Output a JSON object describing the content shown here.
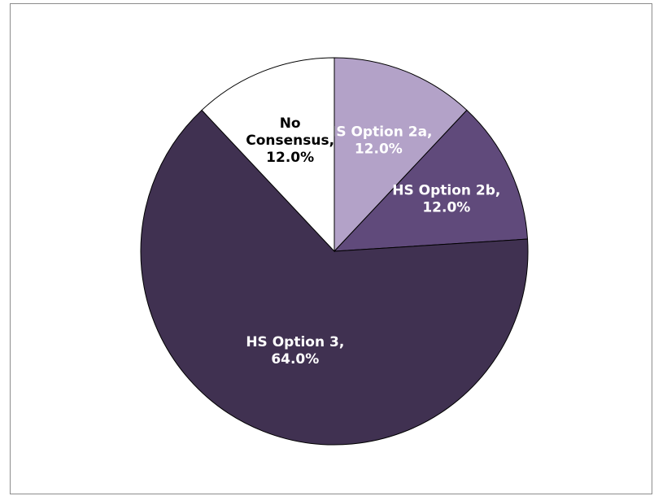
{
  "chart_data": {
    "type": "pie",
    "title": "",
    "slices": [
      {
        "label": "HS Option 2a",
        "value": 12.0,
        "display": "12.0%",
        "color": "#b3a2c8",
        "text_color": "#ffffff"
      },
      {
        "label": "HS Option 2b",
        "value": 12.0,
        "display": "12.0%",
        "color": "#604a7b",
        "text_color": "#ffffff"
      },
      {
        "label": "HS Option 3",
        "value": 64.0,
        "display": "64.0%",
        "color": "#403151",
        "text_color": "#ffffff"
      },
      {
        "label": "No Consensus",
        "value": 12.0,
        "display": "12.0%",
        "color": "#ffffff",
        "text_color": "#000000"
      }
    ],
    "start_direction": "top",
    "direction": "clockwise",
    "slice_border_color": "#000000",
    "legend": "none"
  }
}
